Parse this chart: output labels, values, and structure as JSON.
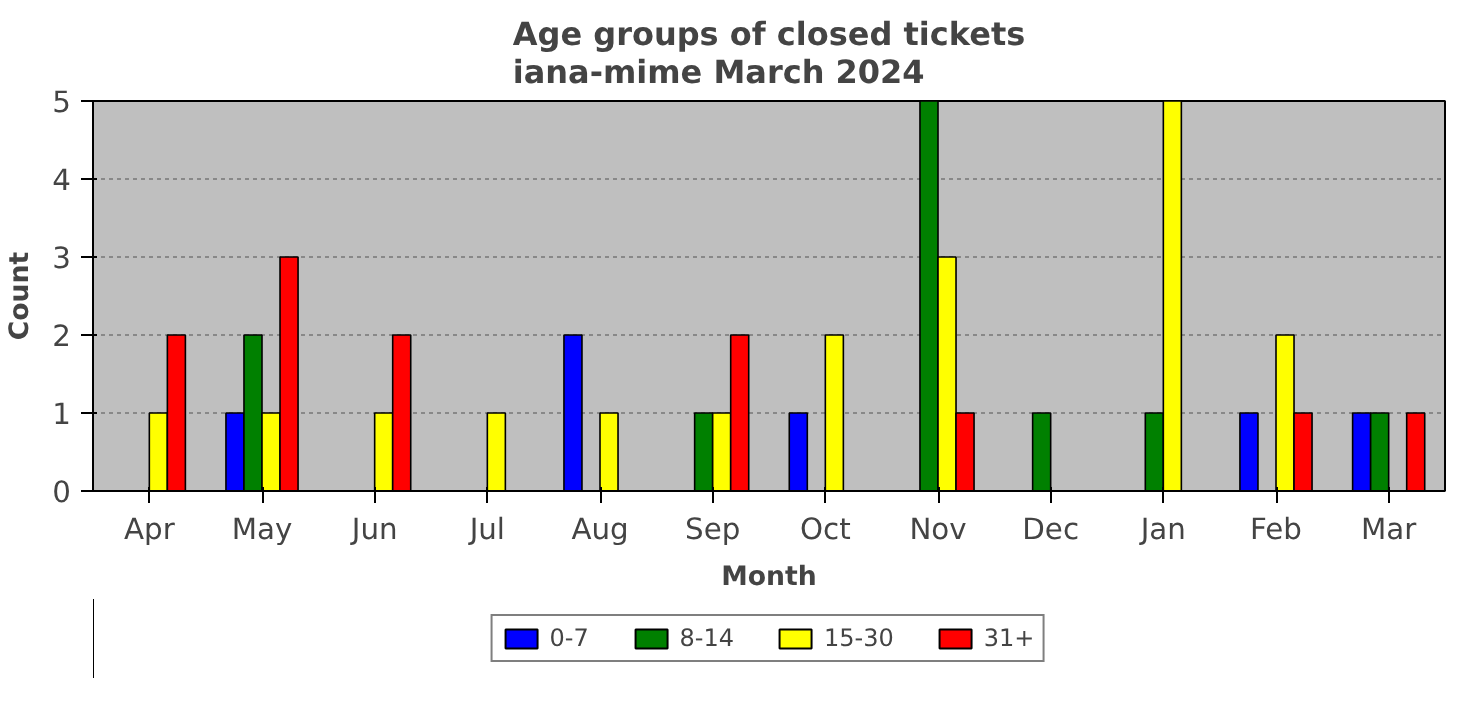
{
  "chart_data": {
    "type": "bar",
    "title": "Age groups of closed tickets\niana-mime March 2024",
    "xlabel": "Month",
    "ylabel": "Count",
    "categories": [
      "Apr",
      "May",
      "Jun",
      "Jul",
      "Aug",
      "Sep",
      "Oct",
      "Nov",
      "Dec",
      "Jan",
      "Feb",
      "Mar"
    ],
    "series": [
      {
        "name": "0-7",
        "color": "#0000ff",
        "values": [
          0,
          1,
          0,
          0,
          2,
          0,
          1,
          0,
          0,
          0,
          1,
          1
        ]
      },
      {
        "name": "8-14",
        "color": "#008000",
        "values": [
          0,
          2,
          0,
          0,
          0,
          1,
          0,
          5,
          1,
          1,
          0,
          1
        ]
      },
      {
        "name": "15-30",
        "color": "#ffff00",
        "values": [
          1,
          1,
          1,
          1,
          1,
          1,
          2,
          3,
          0,
          5,
          2,
          0
        ]
      },
      {
        "name": "31+",
        "color": "#ff0000",
        "values": [
          2,
          3,
          2,
          0,
          0,
          2,
          0,
          1,
          0,
          0,
          1,
          1
        ]
      }
    ],
    "ylim": [
      0,
      5
    ],
    "yticks": [
      0,
      1,
      2,
      3,
      4,
      5
    ],
    "grid": "y",
    "legend": "bottom"
  }
}
